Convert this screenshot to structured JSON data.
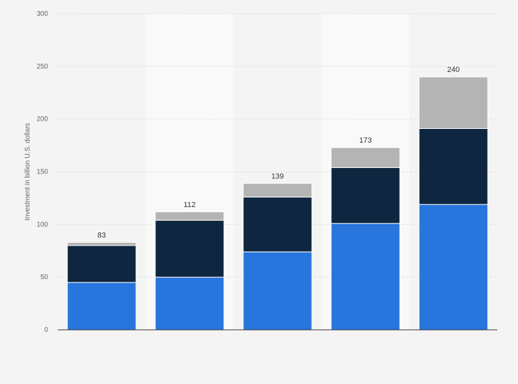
{
  "chart_data": {
    "type": "bar",
    "stacked": true,
    "categories": [
      "",
      "",
      "",
      "",
      ""
    ],
    "series": [
      {
        "values": [
          45,
          50,
          74,
          101,
          119
        ],
        "color": "#2876dd"
      },
      {
        "values": [
          35,
          54,
          52,
          53,
          72
        ],
        "color": "#0f2640"
      },
      {
        "values": [
          3,
          8,
          13,
          19,
          49
        ],
        "color": "#b4b4b4"
      }
    ],
    "totals": [
      83,
      112,
      139,
      173,
      240
    ],
    "title": "",
    "xlabel": "",
    "ylabel": "Investment in billion U.S. dollars",
    "ylim": [
      0,
      300
    ],
    "yticks": [
      0,
      50,
      100,
      150,
      200,
      250,
      300
    ],
    "grid": true,
    "legend": "none"
  }
}
